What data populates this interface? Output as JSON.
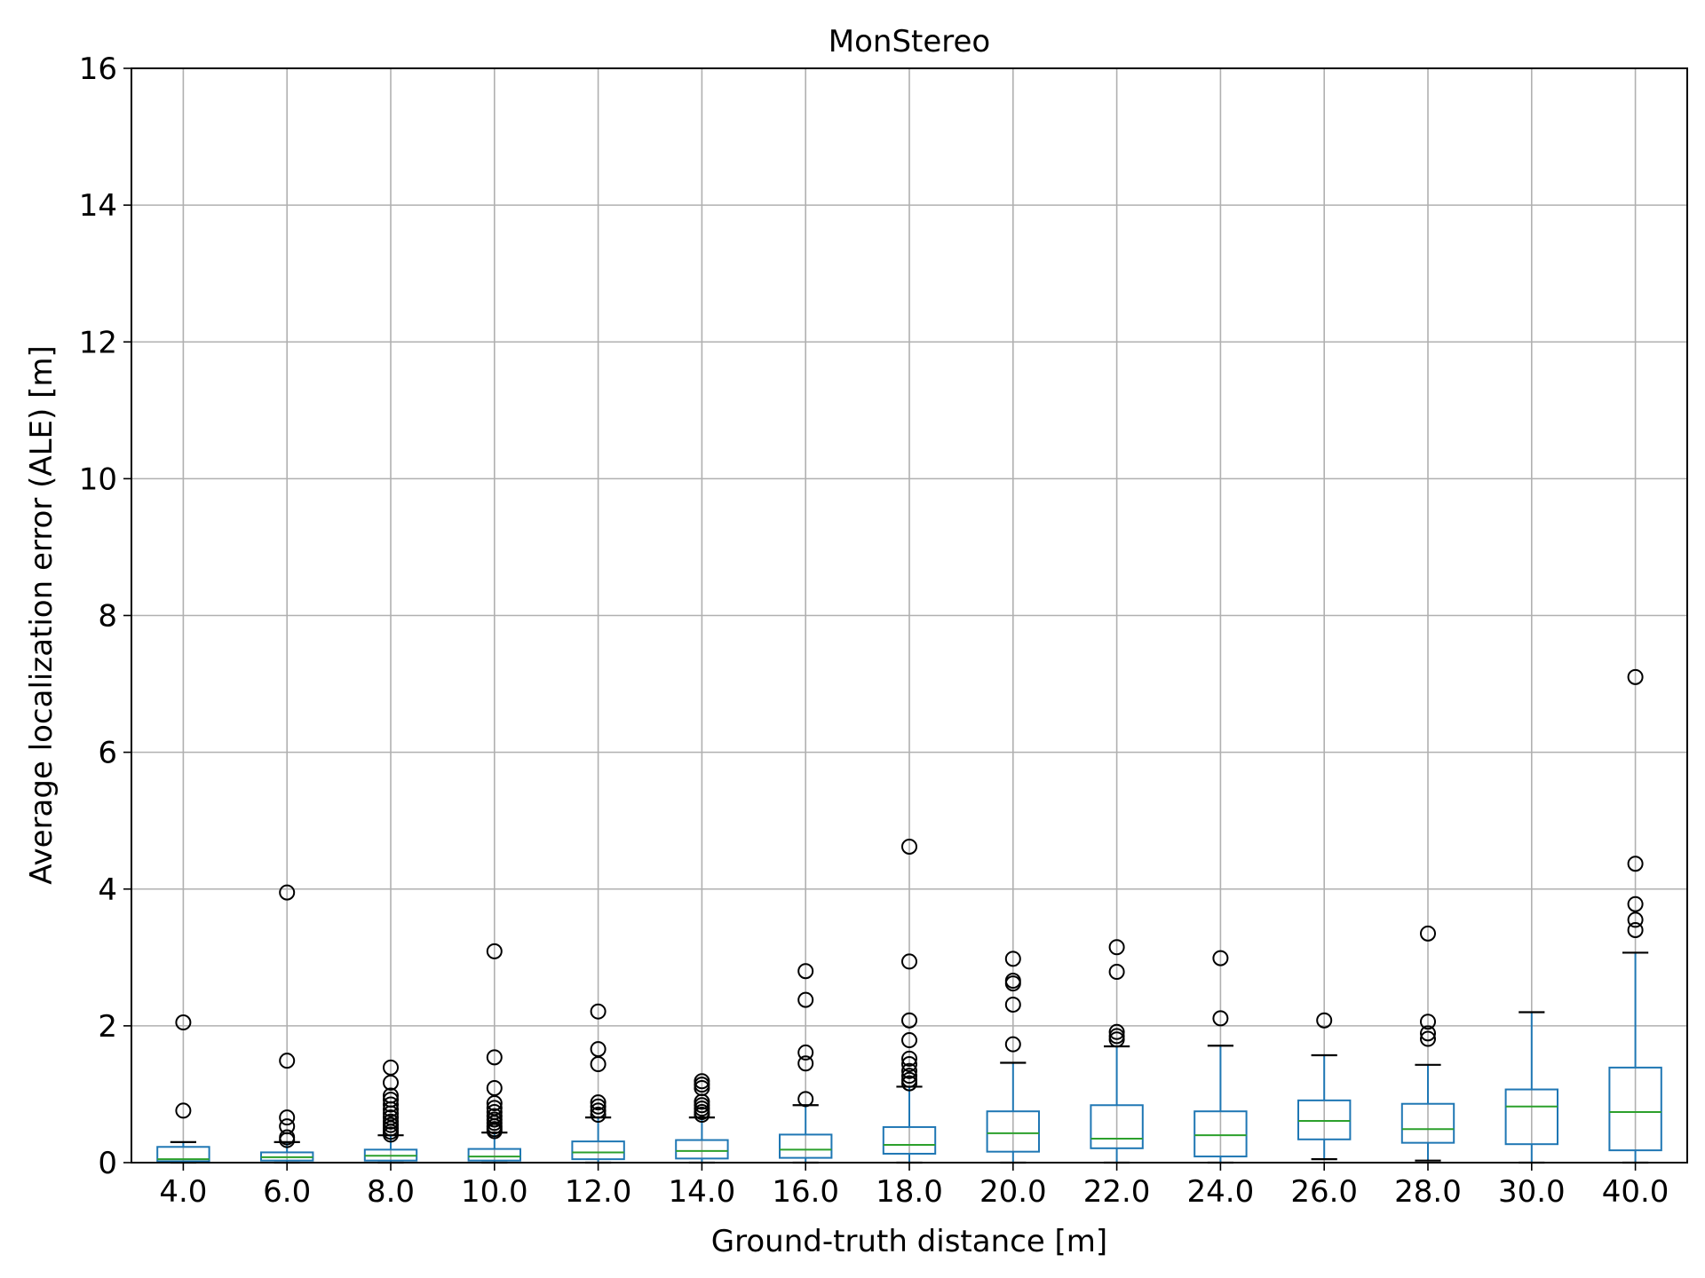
{
  "chart_data": {
    "type": "box",
    "title": "MonStereo",
    "xlabel": "Ground-truth distance [m]",
    "ylabel": "Average localization error (ALE) [m]",
    "ylim": [
      0,
      16
    ],
    "yticks": [
      "0",
      "2",
      "4",
      "6",
      "8",
      "10",
      "12",
      "14",
      "16"
    ],
    "grid": true,
    "colors": {
      "box": "#1f77b4",
      "median": "#2ca02c",
      "whisker_cap": "#000000",
      "grid": "#b0b0b0",
      "outlier": "#000000"
    },
    "categories": [
      "4.0",
      "6.0",
      "8.0",
      "10.0",
      "12.0",
      "14.0",
      "16.0",
      "18.0",
      "20.0",
      "22.0",
      "24.0",
      "26.0",
      "28.0",
      "30.0",
      "40.0"
    ],
    "boxes": [
      {
        "category": "4.0",
        "whislo": 0.0,
        "q1": 0.02,
        "med": 0.05,
        "q3": 0.23,
        "whishi": 0.3,
        "fliers": [
          2.05,
          0.76
        ]
      },
      {
        "category": "6.0",
        "whislo": 0.0,
        "q1": 0.03,
        "med": 0.08,
        "q3": 0.15,
        "whishi": 0.3,
        "fliers": [
          3.95,
          1.49,
          0.66,
          0.53,
          0.37,
          0.33
        ]
      },
      {
        "category": "8.0",
        "whislo": 0.0,
        "q1": 0.03,
        "med": 0.1,
        "q3": 0.19,
        "whishi": 0.4,
        "fliers": [
          1.39,
          1.17,
          0.98,
          0.92,
          0.85,
          0.78,
          0.72,
          0.66,
          0.6,
          0.55,
          0.5,
          0.45,
          0.41
        ]
      },
      {
        "category": "10.0",
        "whislo": 0.0,
        "q1": 0.03,
        "med": 0.09,
        "q3": 0.2,
        "whishi": 0.44,
        "fliers": [
          3.09,
          1.54,
          1.09,
          0.87,
          0.8,
          0.74,
          0.68,
          0.63,
          0.58,
          0.53,
          0.49,
          0.46
        ]
      },
      {
        "category": "12.0",
        "whislo": 0.0,
        "q1": 0.05,
        "med": 0.15,
        "q3": 0.31,
        "whishi": 0.66,
        "fliers": [
          2.21,
          1.66,
          1.44,
          0.88,
          0.82,
          0.76,
          0.7
        ]
      },
      {
        "category": "14.0",
        "whislo": 0.0,
        "q1": 0.06,
        "med": 0.17,
        "q3": 0.33,
        "whishi": 0.66,
        "fliers": [
          1.19,
          1.14,
          1.09,
          0.89,
          0.84,
          0.79,
          0.74,
          0.7
        ]
      },
      {
        "category": "16.0",
        "whislo": 0.0,
        "q1": 0.07,
        "med": 0.19,
        "q3": 0.41,
        "whishi": 0.84,
        "fliers": [
          2.8,
          2.38,
          1.61,
          1.45,
          0.93
        ]
      },
      {
        "category": "18.0",
        "whislo": 0.0,
        "q1": 0.13,
        "med": 0.26,
        "q3": 0.52,
        "whishi": 1.11,
        "fliers": [
          4.62,
          2.94,
          2.08,
          1.79,
          1.52,
          1.44,
          1.34,
          1.27,
          1.21,
          1.16
        ]
      },
      {
        "category": "20.0",
        "whislo": 0.0,
        "q1": 0.16,
        "med": 0.43,
        "q3": 0.75,
        "whishi": 1.46,
        "fliers": [
          2.98,
          2.66,
          2.62,
          2.31,
          1.73
        ]
      },
      {
        "category": "22.0",
        "whislo": 0.0,
        "q1": 0.21,
        "med": 0.35,
        "q3": 0.84,
        "whishi": 1.7,
        "fliers": [
          3.15,
          2.79,
          1.91,
          1.85,
          1.8
        ]
      },
      {
        "category": "24.0",
        "whislo": 0.0,
        "q1": 0.09,
        "med": 0.4,
        "q3": 0.75,
        "whishi": 1.71,
        "fliers": [
          2.99,
          2.11
        ]
      },
      {
        "category": "26.0",
        "whislo": 0.05,
        "q1": 0.34,
        "med": 0.61,
        "q3": 0.91,
        "whishi": 1.57,
        "fliers": [
          2.08
        ]
      },
      {
        "category": "28.0",
        "whislo": 0.03,
        "q1": 0.29,
        "med": 0.49,
        "q3": 0.86,
        "whishi": 1.43,
        "fliers": [
          3.35,
          2.06,
          1.89,
          1.81
        ]
      },
      {
        "category": "30.0",
        "whislo": 0.0,
        "q1": 0.27,
        "med": 0.82,
        "q3": 1.07,
        "whishi": 2.2,
        "fliers": []
      },
      {
        "category": "40.0",
        "whislo": 0.0,
        "q1": 0.18,
        "med": 0.74,
        "q3": 1.39,
        "whishi": 3.07,
        "fliers": [
          7.1,
          4.37,
          3.78,
          3.55,
          3.4
        ]
      }
    ]
  }
}
